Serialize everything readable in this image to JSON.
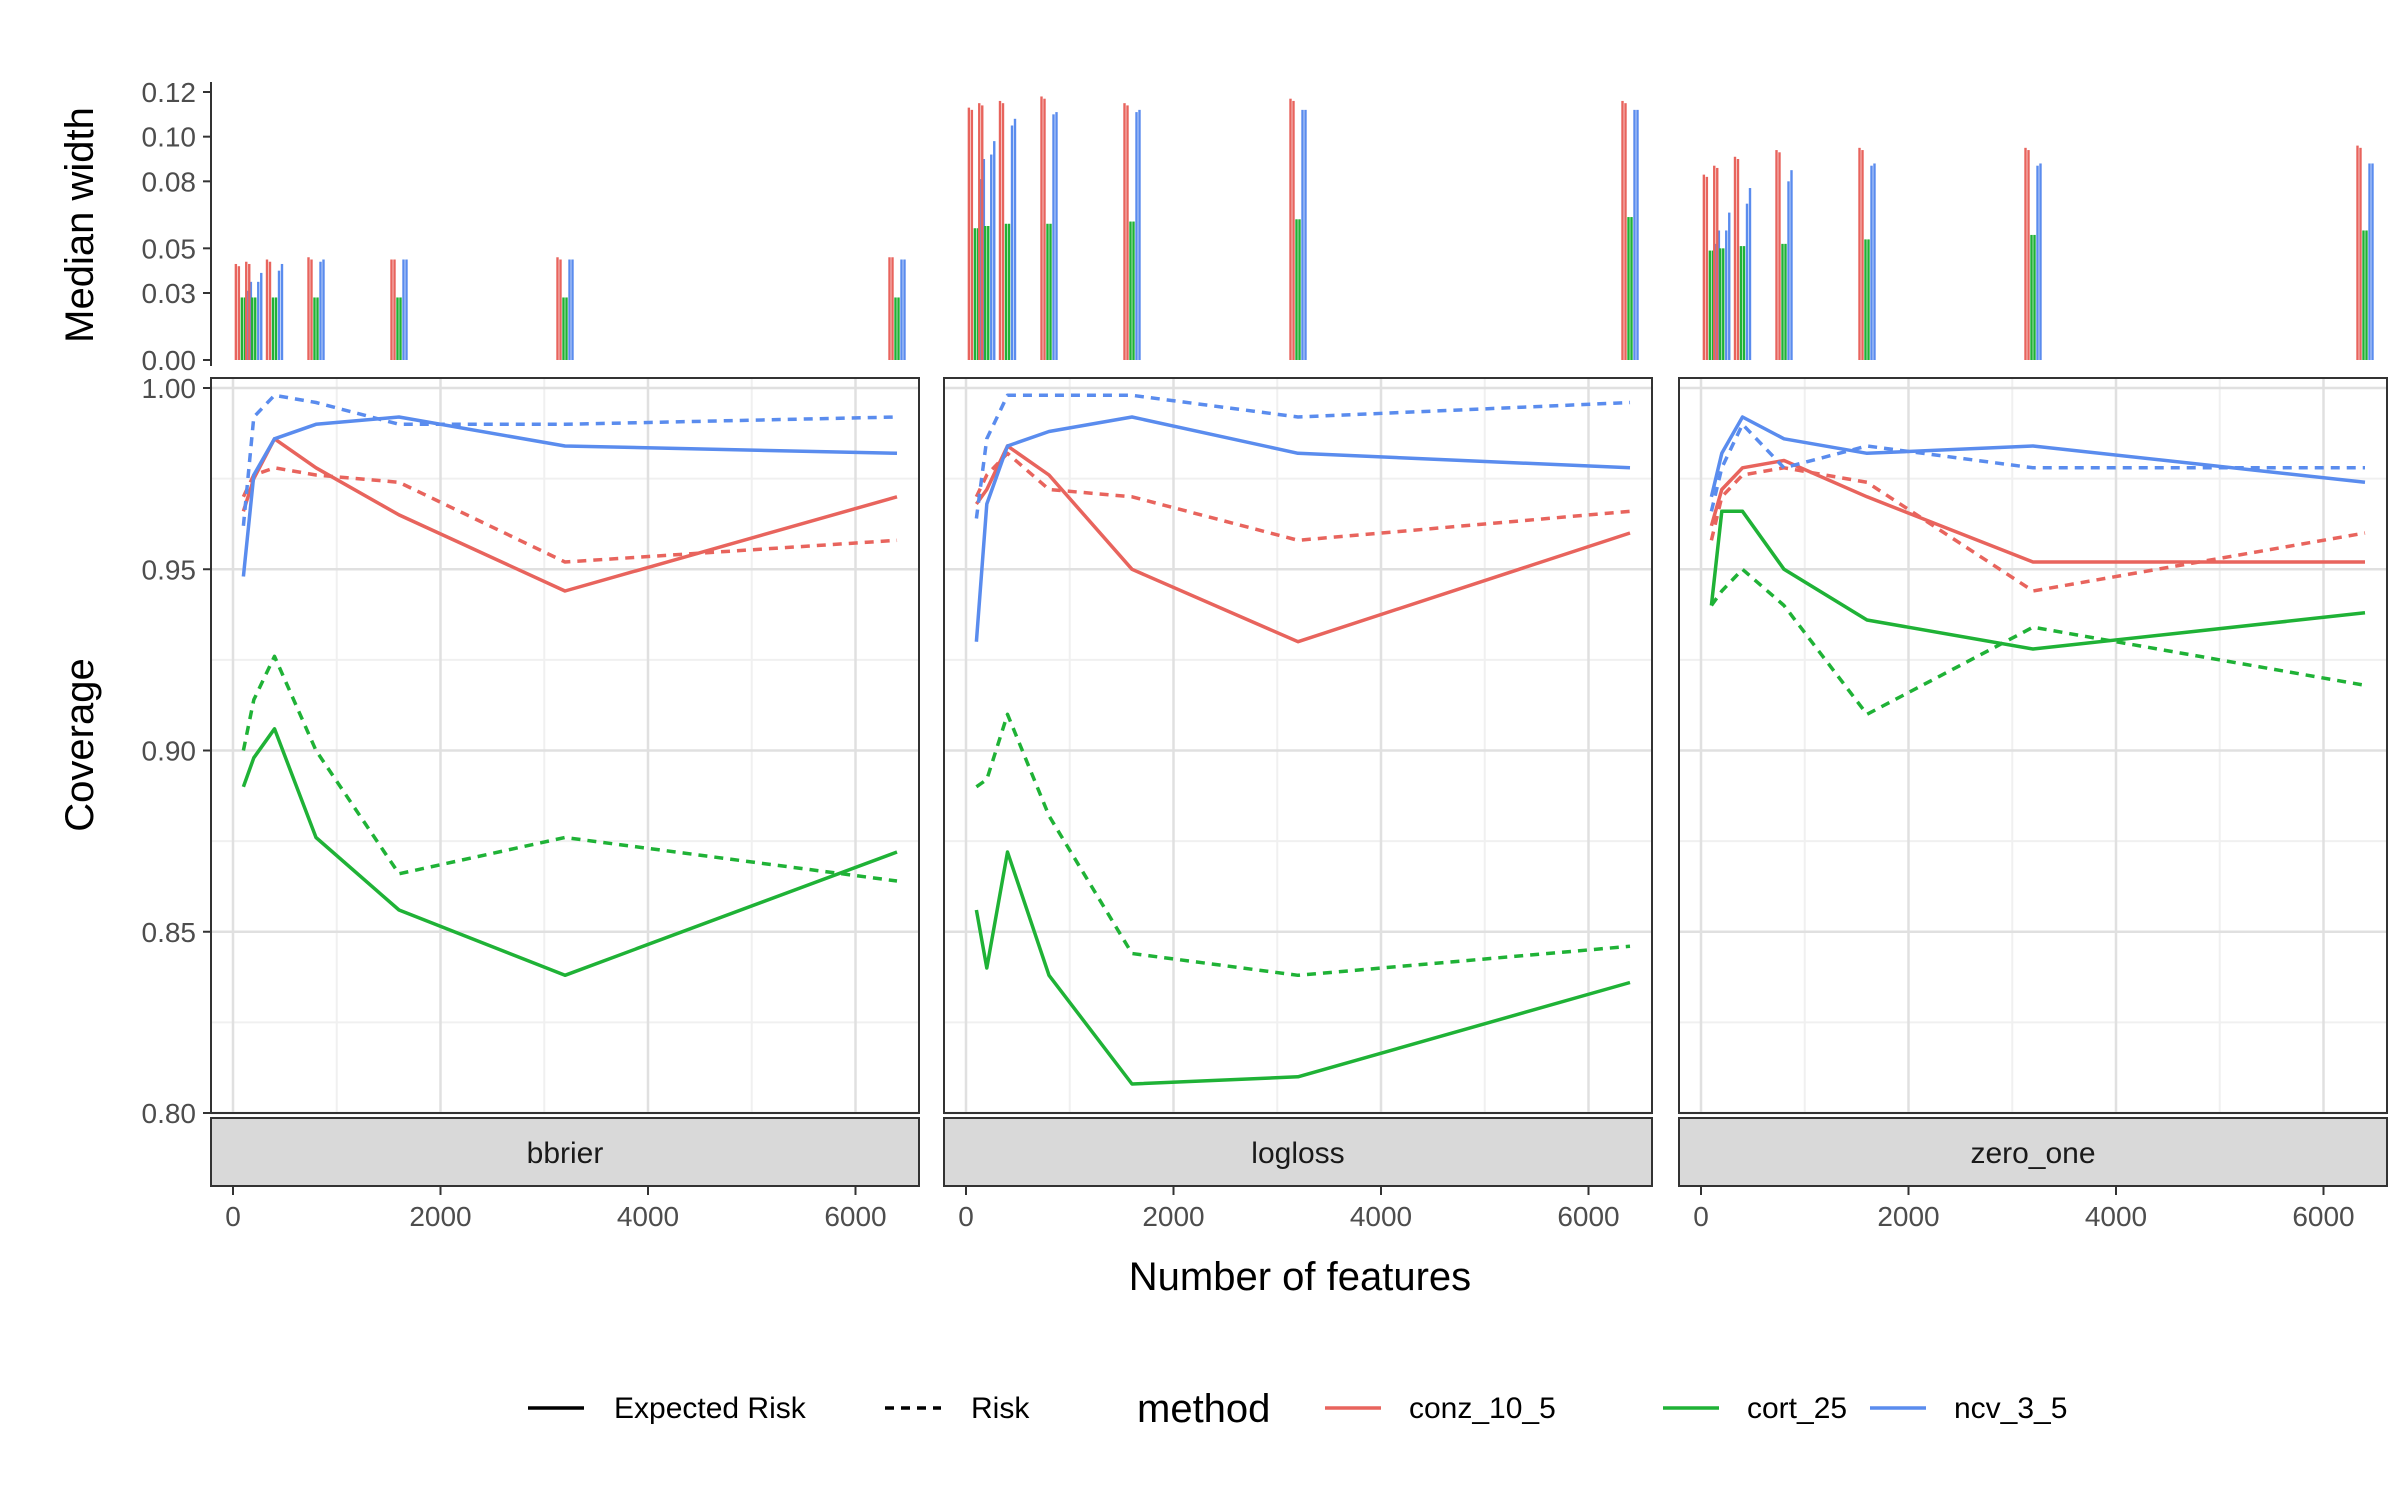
{
  "colors": {
    "conz_10_5": "#E8645D",
    "cort_25": "#1FB236",
    "ncv_3_5": "#5A8CEE",
    "grid_major": "#E0E0E0",
    "grid_minor": "#F0F0F0",
    "strip_fill": "#D9D9D9",
    "frame": "#333333",
    "text": "#333333"
  },
  "labels": {
    "x_title": "Number of features",
    "y_title_top": "Median width",
    "y_title_bottom": "Coverage"
  },
  "legend": {
    "linetype_items": [
      "Expected Risk",
      "Risk"
    ],
    "method_title": "method",
    "method_items": [
      "conz_10_5",
      "cort_25",
      "ncv_3_5"
    ]
  },
  "chart_data": [
    {
      "type": "bar",
      "name": "median_width",
      "ylabel": "Median width",
      "ylim": [
        0,
        0.12
      ],
      "yticks": [
        0.0,
        0.03,
        0.05,
        0.08,
        0.1,
        0.12
      ],
      "ytick_labels": [
        "0.00",
        "0.03",
        "0.05",
        "0.08",
        "0.10",
        "0.12"
      ],
      "panels": [
        "bbrier",
        "logloss",
        "zero_one"
      ],
      "x": [
        100,
        200,
        400,
        800,
        1600,
        3200,
        6400
      ],
      "measures": [
        "Expected Risk",
        "Risk"
      ],
      "series": {
        "bbrier": {
          "conz_10_5": [
            [
              0.043,
              0.042
            ],
            [
              0.044,
              0.043
            ],
            [
              0.045,
              0.044
            ],
            [
              0.046,
              0.045
            ],
            [
              0.045,
              0.045
            ],
            [
              0.046,
              0.045
            ],
            [
              0.046,
              0.046
            ]
          ],
          "cort_25": [
            [
              0.028,
              0.028
            ],
            [
              0.028,
              0.028
            ],
            [
              0.028,
              0.028
            ],
            [
              0.028,
              0.028
            ],
            [
              0.028,
              0.028
            ],
            [
              0.028,
              0.028
            ],
            [
              0.028,
              0.028
            ]
          ],
          "ncv_3_5": [
            [
              0.031,
              0.035
            ],
            [
              0.035,
              0.039
            ],
            [
              0.04,
              0.043
            ],
            [
              0.044,
              0.045
            ],
            [
              0.045,
              0.045
            ],
            [
              0.045,
              0.045
            ],
            [
              0.045,
              0.045
            ]
          ]
        },
        "logloss": {
          "conz_10_5": [
            [
              0.113,
              0.112
            ],
            [
              0.115,
              0.114
            ],
            [
              0.116,
              0.115
            ],
            [
              0.118,
              0.117
            ],
            [
              0.115,
              0.114
            ],
            [
              0.117,
              0.116
            ],
            [
              0.116,
              0.115
            ]
          ],
          "cort_25": [
            [
              0.059,
              0.059
            ],
            [
              0.06,
              0.06
            ],
            [
              0.061,
              0.061
            ],
            [
              0.061,
              0.061
            ],
            [
              0.062,
              0.062
            ],
            [
              0.063,
              0.063
            ],
            [
              0.064,
              0.064
            ]
          ],
          "ncv_3_5": [
            [
              0.081,
              0.09
            ],
            [
              0.092,
              0.098
            ],
            [
              0.105,
              0.108
            ],
            [
              0.11,
              0.111
            ],
            [
              0.111,
              0.112
            ],
            [
              0.112,
              0.112
            ],
            [
              0.112,
              0.112
            ]
          ]
        },
        "zero_one": {
          "conz_10_5": [
            [
              0.083,
              0.082
            ],
            [
              0.087,
              0.086
            ],
            [
              0.091,
              0.09
            ],
            [
              0.094,
              0.093
            ],
            [
              0.095,
              0.094
            ],
            [
              0.095,
              0.094
            ],
            [
              0.096,
              0.095
            ]
          ],
          "cort_25": [
            [
              0.049,
              0.049
            ],
            [
              0.05,
              0.05
            ],
            [
              0.051,
              0.051
            ],
            [
              0.052,
              0.052
            ],
            [
              0.054,
              0.054
            ],
            [
              0.056,
              0.056
            ],
            [
              0.058,
              0.058
            ]
          ],
          "ncv_3_5": [
            [
              0.052,
              0.058
            ],
            [
              0.058,
              0.066
            ],
            [
              0.07,
              0.077
            ],
            [
              0.08,
              0.085
            ],
            [
              0.087,
              0.088
            ],
            [
              0.087,
              0.088
            ],
            [
              0.088,
              0.088
            ]
          ]
        }
      }
    },
    {
      "type": "line",
      "name": "coverage",
      "xlabel": "Number of features",
      "ylabel": "Coverage",
      "xlim": [
        0,
        6400
      ],
      "ylim": [
        0.8,
        1.0
      ],
      "xticks": [
        0,
        2000,
        4000,
        6000
      ],
      "xtick_labels": [
        "0",
        "2000",
        "4000",
        "6000"
      ],
      "yticks": [
        0.8,
        0.85,
        0.9,
        0.95,
        1.0
      ],
      "ytick_labels": [
        "0.80",
        "0.85",
        "0.90",
        "0.95",
        "1.00"
      ],
      "panels": [
        "bbrier",
        "logloss",
        "zero_one"
      ],
      "x": [
        100,
        200,
        400,
        800,
        1600,
        3200,
        6400
      ],
      "series": {
        "bbrier": {
          "conz_10_5": {
            "Expected Risk": [
              0.966,
              0.975,
              0.986,
              0.978,
              0.965,
              0.944,
              0.97
            ],
            "Risk": [
              0.97,
              0.976,
              0.978,
              0.976,
              0.974,
              0.952,
              0.958
            ]
          },
          "cort_25": {
            "Expected Risk": [
              0.89,
              0.898,
              0.906,
              0.876,
              0.856,
              0.838,
              0.872
            ],
            "Risk": [
              0.9,
              0.914,
              0.926,
              0.9,
              0.866,
              0.876,
              0.864
            ]
          },
          "ncv_3_5": {
            "Expected Risk": [
              0.948,
              0.976,
              0.986,
              0.99,
              0.992,
              0.984,
              0.982
            ],
            "Risk": [
              0.962,
              0.992,
              0.998,
              0.996,
              0.99,
              0.99,
              0.992
            ]
          }
        },
        "logloss": {
          "conz_10_5": {
            "Expected Risk": [
              0.968,
              0.972,
              0.984,
              0.976,
              0.95,
              0.93,
              0.96
            ],
            "Risk": [
              0.97,
              0.976,
              0.982,
              0.972,
              0.97,
              0.958,
              0.966
            ]
          },
          "cort_25": {
            "Expected Risk": [
              0.856,
              0.84,
              0.872,
              0.838,
              0.808,
              0.81,
              0.836
            ],
            "Risk": [
              0.89,
              0.892,
              0.91,
              0.882,
              0.844,
              0.838,
              0.846
            ]
          },
          "ncv_3_5": {
            "Expected Risk": [
              0.93,
              0.968,
              0.984,
              0.988,
              0.992,
              0.982,
              0.978
            ],
            "Risk": [
              0.964,
              0.986,
              0.998,
              0.998,
              0.998,
              0.992,
              0.996
            ]
          }
        },
        "zero_one": {
          "conz_10_5": {
            "Expected Risk": [
              0.962,
              0.972,
              0.978,
              0.98,
              0.97,
              0.952,
              0.952
            ],
            "Risk": [
              0.958,
              0.97,
              0.976,
              0.978,
              0.974,
              0.944,
              0.96
            ]
          },
          "cort_25": {
            "Expected Risk": [
              0.94,
              0.966,
              0.966,
              0.95,
              0.936,
              0.928,
              0.938
            ],
            "Risk": [
              0.94,
              0.944,
              0.95,
              0.94,
              0.91,
              0.934,
              0.918
            ]
          },
          "ncv_3_5": {
            "Expected Risk": [
              0.97,
              0.982,
              0.992,
              0.986,
              0.982,
              0.984,
              0.974
            ],
            "Risk": [
              0.966,
              0.978,
              0.99,
              0.978,
              0.984,
              0.978,
              0.978
            ]
          }
        }
      }
    }
  ]
}
